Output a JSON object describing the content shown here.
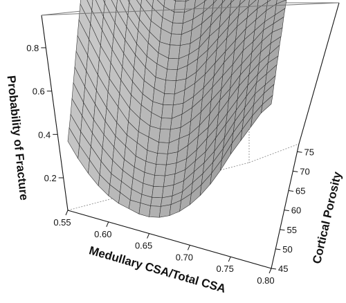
{
  "chart_data": {
    "type": "surface",
    "title": "",
    "xlabel": "Medullary CSA/Total CSA",
    "ylabel": "Cortical Porosity",
    "zlabel": "Probability of Fracture",
    "x_ticks": [
      "0.55",
      "0.60",
      "0.65",
      "0.70",
      "0.75",
      "0.80"
    ],
    "y_ticks": [
      "45",
      "50",
      "55",
      "60",
      "65",
      "70",
      "75"
    ],
    "z_ticks": [
      "0.2",
      "0.4",
      "0.6",
      "0.8"
    ],
    "xlim": [
      0.55,
      0.8
    ],
    "ylim": [
      45,
      77
    ],
    "zlim": [
      0.05,
      0.95
    ],
    "surface_color": "#b3b3b3",
    "mesh_color": "#2a2a2a",
    "x": [
      0.55,
      0.5625,
      0.575,
      0.5875,
      0.6,
      0.6125,
      0.625,
      0.6375,
      0.65,
      0.6625,
      0.675,
      0.6875,
      0.7,
      0.7125,
      0.725,
      0.7375,
      0.75,
      0.7625,
      0.775,
      0.7875,
      0.8
    ],
    "y": [
      45,
      46.6,
      48.2,
      49.8,
      51.4,
      53,
      54.6,
      56.2,
      57.8,
      59.4,
      61,
      62.6,
      64.2,
      65.8,
      67.4,
      69,
      70.6,
      72.2,
      73.8,
      75.4,
      77
    ],
    "z": [
      [
        0.34,
        0.28,
        0.23,
        0.19,
        0.16,
        0.14,
        0.13,
        0.12,
        0.12,
        0.13,
        0.15,
        0.18,
        0.22,
        0.27,
        0.33,
        0.4,
        0.48,
        0.55,
        0.62,
        0.69,
        0.74
      ],
      [
        0.37,
        0.31,
        0.26,
        0.21,
        0.18,
        0.16,
        0.14,
        0.14,
        0.14,
        0.15,
        0.17,
        0.2,
        0.24,
        0.29,
        0.35,
        0.42,
        0.5,
        0.57,
        0.64,
        0.7,
        0.75
      ],
      [
        0.4,
        0.34,
        0.29,
        0.24,
        0.2,
        0.18,
        0.16,
        0.15,
        0.15,
        0.16,
        0.18,
        0.21,
        0.26,
        0.31,
        0.37,
        0.44,
        0.52,
        0.59,
        0.66,
        0.72,
        0.77
      ],
      [
        0.44,
        0.38,
        0.32,
        0.27,
        0.23,
        0.2,
        0.18,
        0.17,
        0.17,
        0.18,
        0.2,
        0.23,
        0.28,
        0.33,
        0.39,
        0.46,
        0.54,
        0.61,
        0.68,
        0.73,
        0.78
      ],
      [
        0.48,
        0.41,
        0.35,
        0.3,
        0.26,
        0.22,
        0.2,
        0.19,
        0.19,
        0.2,
        0.22,
        0.25,
        0.3,
        0.35,
        0.42,
        0.49,
        0.56,
        0.63,
        0.7,
        0.75,
        0.8
      ],
      [
        0.52,
        0.45,
        0.39,
        0.33,
        0.28,
        0.25,
        0.22,
        0.21,
        0.21,
        0.22,
        0.24,
        0.27,
        0.32,
        0.38,
        0.44,
        0.51,
        0.58,
        0.65,
        0.71,
        0.77,
        0.81
      ],
      [
        0.56,
        0.49,
        0.42,
        0.36,
        0.31,
        0.27,
        0.25,
        0.23,
        0.23,
        0.24,
        0.26,
        0.3,
        0.35,
        0.4,
        0.47,
        0.54,
        0.61,
        0.67,
        0.73,
        0.78,
        0.83
      ],
      [
        0.6,
        0.53,
        0.46,
        0.4,
        0.35,
        0.3,
        0.27,
        0.26,
        0.25,
        0.26,
        0.29,
        0.32,
        0.37,
        0.43,
        0.5,
        0.56,
        0.63,
        0.69,
        0.75,
        0.8,
        0.84
      ],
      [
        0.64,
        0.57,
        0.5,
        0.43,
        0.38,
        0.33,
        0.3,
        0.28,
        0.28,
        0.29,
        0.31,
        0.35,
        0.4,
        0.46,
        0.52,
        0.59,
        0.65,
        0.71,
        0.77,
        0.82,
        0.85
      ],
      [
        0.68,
        0.61,
        0.53,
        0.47,
        0.41,
        0.36,
        0.33,
        0.31,
        0.3,
        0.31,
        0.34,
        0.38,
        0.43,
        0.49,
        0.55,
        0.61,
        0.68,
        0.73,
        0.79,
        0.83,
        0.87
      ],
      [
        0.72,
        0.64,
        0.57,
        0.5,
        0.44,
        0.39,
        0.35,
        0.33,
        0.33,
        0.34,
        0.36,
        0.4,
        0.45,
        0.51,
        0.58,
        0.64,
        0.7,
        0.75,
        0.8,
        0.84,
        0.88
      ],
      [
        0.75,
        0.68,
        0.6,
        0.53,
        0.47,
        0.42,
        0.38,
        0.36,
        0.35,
        0.36,
        0.39,
        0.43,
        0.48,
        0.54,
        0.6,
        0.66,
        0.72,
        0.77,
        0.82,
        0.86,
        0.89
      ],
      [
        0.78,
        0.71,
        0.63,
        0.56,
        0.5,
        0.45,
        0.41,
        0.38,
        0.38,
        0.39,
        0.41,
        0.45,
        0.51,
        0.57,
        0.63,
        0.69,
        0.74,
        0.79,
        0.83,
        0.87,
        0.9
      ],
      [
        0.81,
        0.74,
        0.66,
        0.59,
        0.53,
        0.47,
        0.43,
        0.41,
        0.4,
        0.41,
        0.44,
        0.48,
        0.53,
        0.59,
        0.65,
        0.71,
        0.76,
        0.81,
        0.85,
        0.88,
        0.91
      ],
      [
        0.83,
        0.76,
        0.69,
        0.62,
        0.55,
        0.5,
        0.46,
        0.43,
        0.42,
        0.43,
        0.46,
        0.5,
        0.56,
        0.61,
        0.67,
        0.73,
        0.78,
        0.82,
        0.86,
        0.89,
        0.92
      ],
      [
        0.85,
        0.79,
        0.71,
        0.64,
        0.58,
        0.52,
        0.48,
        0.45,
        0.45,
        0.46,
        0.48,
        0.52,
        0.58,
        0.64,
        0.7,
        0.75,
        0.8,
        0.84,
        0.87,
        0.9,
        0.92
      ],
      [
        0.87,
        0.81,
        0.74,
        0.67,
        0.6,
        0.55,
        0.5,
        0.48,
        0.47,
        0.48,
        0.51,
        0.55,
        0.6,
        0.66,
        0.72,
        0.77,
        0.81,
        0.85,
        0.88,
        0.91,
        0.93
      ],
      [
        0.88,
        0.83,
        0.76,
        0.69,
        0.63,
        0.57,
        0.53,
        0.5,
        0.49,
        0.5,
        0.53,
        0.57,
        0.62,
        0.68,
        0.73,
        0.78,
        0.83,
        0.86,
        0.89,
        0.91,
        0.93
      ],
      [
        0.89,
        0.84,
        0.78,
        0.71,
        0.65,
        0.59,
        0.55,
        0.52,
        0.51,
        0.52,
        0.55,
        0.59,
        0.64,
        0.7,
        0.75,
        0.8,
        0.84,
        0.87,
        0.9,
        0.92,
        0.94
      ],
      [
        0.9,
        0.86,
        0.8,
        0.73,
        0.67,
        0.61,
        0.57,
        0.54,
        0.53,
        0.54,
        0.57,
        0.61,
        0.66,
        0.72,
        0.77,
        0.81,
        0.85,
        0.88,
        0.91,
        0.93,
        0.94
      ],
      [
        0.91,
        0.87,
        0.81,
        0.75,
        0.69,
        0.63,
        0.59,
        0.56,
        0.55,
        0.56,
        0.59,
        0.63,
        0.68,
        0.73,
        0.78,
        0.83,
        0.86,
        0.89,
        0.91,
        0.93,
        0.95
      ]
    ]
  }
}
